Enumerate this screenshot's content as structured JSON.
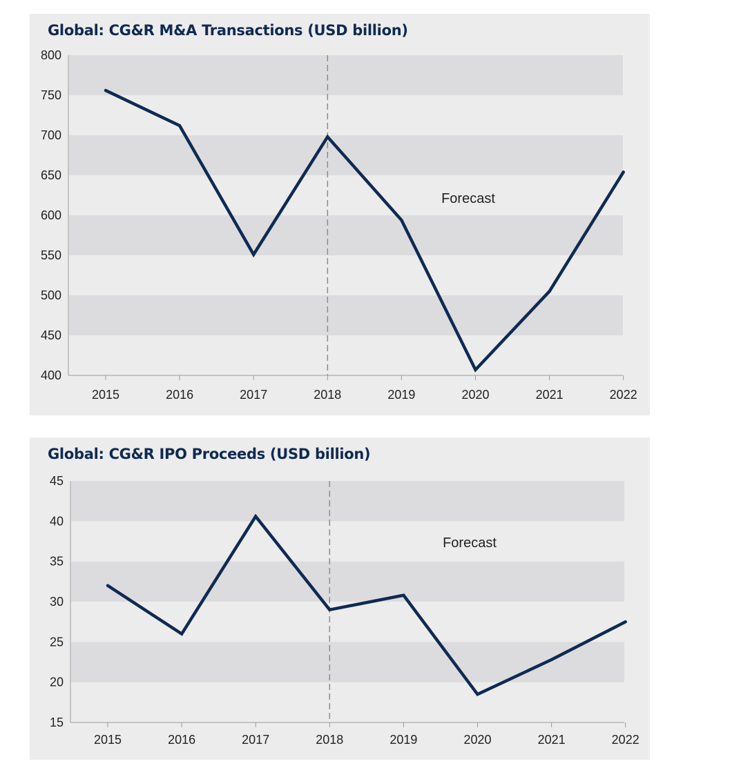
{
  "chart_data": [
    {
      "type": "line",
      "title": "Global: CG&R M&A Transactions (USD billion)",
      "x": [
        "2015",
        "2016",
        "2017",
        "2018",
        "2019",
        "2020",
        "2021",
        "2022"
      ],
      "values": [
        756,
        712,
        551,
        698,
        594,
        407,
        505,
        654
      ],
      "ylim": [
        400,
        800
      ],
      "yticks": [
        "400",
        "450",
        "500",
        "550",
        "600",
        "650",
        "700",
        "750",
        "800"
      ],
      "forecast_from": "2018",
      "annotation": "Forecast",
      "line_color": "#0f2a52",
      "band_color": "#dcdcde",
      "background_color": "#ececec"
    },
    {
      "type": "line",
      "title": "Global: CG&R IPO Proceeds (USD billion)",
      "x": [
        "2015",
        "2016",
        "2017",
        "2018",
        "2019",
        "2020",
        "2021",
        "2022"
      ],
      "values": [
        32,
        26,
        40.6,
        29,
        30.8,
        18.5,
        22.8,
        27.5
      ],
      "ylim": [
        15,
        45
      ],
      "yticks": [
        "15",
        "20",
        "25",
        "30",
        "35",
        "40",
        "45"
      ],
      "forecast_from": "2018",
      "annotation": "Forecast",
      "line_color": "#0f2a52",
      "band_color": "#dcdcde",
      "background_color": "#ececec"
    }
  ]
}
